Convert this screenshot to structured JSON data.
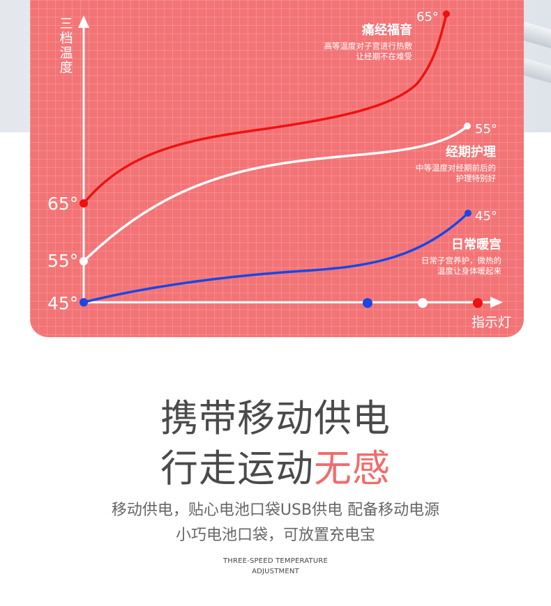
{
  "chart_data": {
    "type": "line",
    "ylabel": "三档温度",
    "xlabel": "指示灯",
    "y_ticks": [
      "65°",
      "55°",
      "45°"
    ],
    "indicator_colors": [
      "#1747e6",
      "#ffffff",
      "#ee1111"
    ],
    "series": [
      {
        "name": "痛经福音",
        "color": "#ee1111",
        "start": "65°",
        "end": "65°",
        "label_end": "65°",
        "desc_lines": [
          "高等温度对子宫进行热敷",
          "让经期不在难受"
        ]
      },
      {
        "name": "经期护理",
        "color": "#ffffff",
        "start": "55°",
        "end": "55°",
        "label_end": "55°",
        "desc_lines": [
          "中等温度对经期前后的",
          "护理特别好"
        ]
      },
      {
        "name": "日常暖宫",
        "color": "#1747e6",
        "start": "45°",
        "end": "45°",
        "label_end": "45°",
        "desc_lines": [
          "日常子宫养护，微热的",
          "温度让身体暖起来"
        ]
      }
    ]
  },
  "headline": {
    "line1": "携带移动供电",
    "line2_prefix": "行走运动",
    "line2_highlight": "无感"
  },
  "description": {
    "line1": "移动供电，贴心电池口袋USB供电 配备移动电源",
    "line2": "小巧电池口袋，可放置充电宝"
  },
  "english": {
    "line1": "THREE-SPEED TEMPERATURE",
    "line2": "ADJUSTMENT"
  },
  "colors": {
    "panel": "#f37476",
    "highlight": "#f16c6c",
    "headline": "#4a4a4a"
  }
}
